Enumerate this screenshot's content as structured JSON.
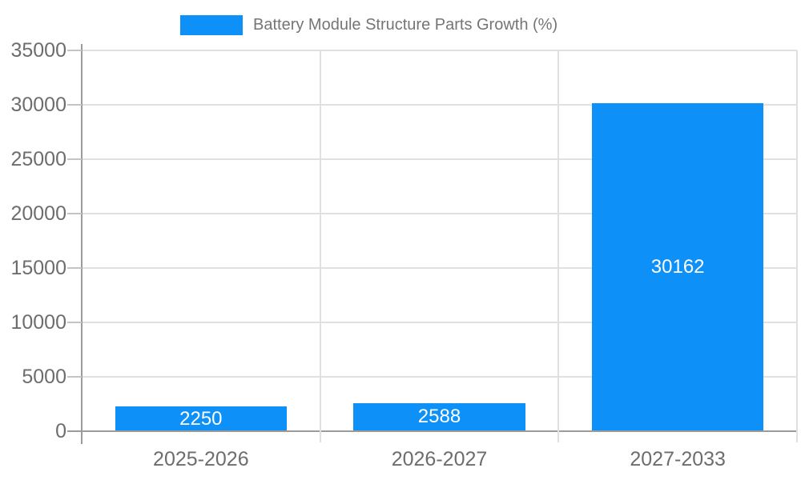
{
  "legend": {
    "label": "Battery Module Structure Parts Growth (%)"
  },
  "colors": {
    "bar": "#0d90f8",
    "gridline": "#e0e0e0",
    "axis_line": "#9b9b9b",
    "tick_mark": "#c4c4c4",
    "axis_label_text": "#6d6d6d",
    "legend_text": "#757575",
    "value_label_text": "#ffffff",
    "background": "#ffffff"
  },
  "chart_data": {
    "type": "bar",
    "title": "Battery Module Structure Parts Growth (%)",
    "categories": [
      "2025-2026",
      "2026-2027",
      "2027-2033"
    ],
    "series": [
      {
        "name": "Battery Module Structure Parts Growth (%)",
        "values": [
          2250,
          2588,
          30162
        ],
        "color": "#0d90f8"
      }
    ],
    "value_labels": [
      "2250",
      "2588",
      "30162"
    ],
    "xlabel": "",
    "ylabel": "",
    "ylim": [
      0,
      35000
    ],
    "yticks": [
      0,
      5000,
      10000,
      15000,
      20000,
      25000,
      30000,
      35000
    ],
    "grid": true,
    "legend_position": "top",
    "value_labels_inside_bars": true
  }
}
